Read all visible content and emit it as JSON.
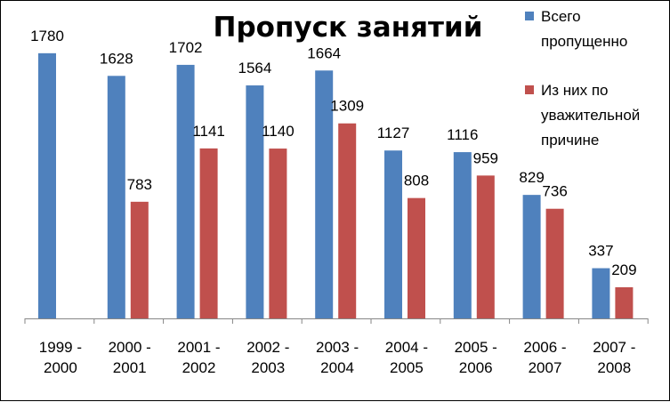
{
  "chart_data": {
    "type": "bar",
    "title": "Пропуск занятий",
    "categories": [
      [
        "1999 -",
        "2000"
      ],
      [
        "2000 -",
        "2001"
      ],
      [
        "2001 -",
        "2002"
      ],
      [
        "2002 -",
        "2003"
      ],
      [
        "2003 -",
        "2004"
      ],
      [
        "2004 -",
        "2005"
      ],
      [
        "2005 -",
        "2006"
      ],
      [
        "2006 -",
        "2007"
      ],
      [
        "2007 -",
        "2008"
      ]
    ],
    "series": [
      {
        "name_lines": [
          "Всего",
          "пропущенно"
        ],
        "color": "#4F81BD",
        "values": [
          1780,
          1628,
          1702,
          1564,
          1664,
          1127,
          1116,
          829,
          337
        ]
      },
      {
        "name_lines": [
          "Из них по",
          "уважительной",
          "причине"
        ],
        "color": "#C0504D",
        "values": [
          null,
          783,
          1141,
          1140,
          1309,
          808,
          959,
          736,
          209
        ]
      }
    ],
    "ylim": [
      0,
      2000
    ],
    "grid": false,
    "legend_position": "right"
  }
}
